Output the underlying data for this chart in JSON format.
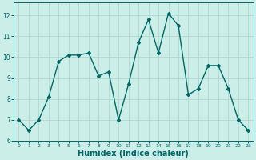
{
  "x": [
    0,
    1,
    2,
    3,
    4,
    5,
    6,
    7,
    8,
    9,
    10,
    11,
    12,
    13,
    14,
    15,
    16,
    17,
    18,
    19,
    20,
    21,
    22,
    23
  ],
  "y": [
    7.0,
    6.5,
    7.0,
    8.1,
    9.8,
    10.1,
    10.1,
    10.2,
    9.1,
    9.3,
    7.0,
    8.7,
    10.7,
    11.8,
    10.2,
    12.1,
    11.5,
    8.2,
    8.5,
    9.6,
    9.6,
    8.5,
    7.0,
    6.5
  ],
  "line_color": "#006666",
  "marker": "D",
  "marker_size": 2.0,
  "line_width": 1.0,
  "bg_color": "#cceee8",
  "grid_color": "#b0d8d0",
  "xlabel": "Humidex (Indice chaleur)",
  "xlabel_fontsize": 7,
  "ylabel_ticks": [
    6,
    7,
    8,
    9,
    10,
    11,
    12
  ],
  "xtick_labels": [
    "0",
    "1",
    "2",
    "3",
    "4",
    "5",
    "6",
    "7",
    "8",
    "9",
    "10",
    "11",
    "12",
    "13",
    "14",
    "15",
    "16",
    "17",
    "18",
    "19",
    "20",
    "21",
    "22",
    "23"
  ],
  "ylim": [
    6.0,
    12.6
  ],
  "xlim": [
    -0.5,
    23.5
  ]
}
